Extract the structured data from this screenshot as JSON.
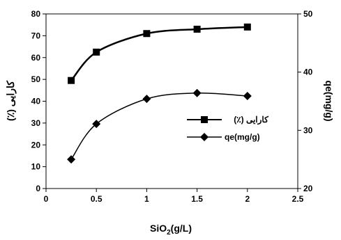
{
  "chart_data": {
    "type": "line",
    "xlabel": "SiO2(g/L)",
    "xlabel_main": "SiO",
    "xlabel_sub": "2",
    "xlabel_rest": "(g/L)",
    "ylabel_left": "کارایی (٪)",
    "ylabel_right": "qe(mg/g)",
    "xlim": [
      0,
      2.5
    ],
    "ylim_left": [
      0,
      80
    ],
    "ylim_right": [
      20,
      50
    ],
    "x_ticks": [
      "0",
      "0.5",
      "1",
      "1.5",
      "2",
      "2.5"
    ],
    "y_ticks_left": [
      "0",
      "10",
      "20",
      "30",
      "40",
      "50",
      "60",
      "70",
      "80"
    ],
    "y_ticks_right": [
      "20",
      "30",
      "40",
      "50"
    ],
    "grid": false,
    "legend_position": "center-right",
    "series": [
      {
        "name": "کارایی (٪)",
        "axis": "left",
        "marker": "square",
        "x": [
          0.25,
          0.5,
          1,
          1.5,
          2
        ],
        "values": [
          49.5,
          62.5,
          71,
          73,
          74
        ]
      },
      {
        "name": "qe(mg/g)",
        "axis": "right",
        "marker": "diamond",
        "x": [
          0.25,
          0.5,
          1,
          1.5,
          2
        ],
        "values": [
          25,
          31.1,
          35.4,
          36.4,
          35.9
        ]
      }
    ]
  }
}
